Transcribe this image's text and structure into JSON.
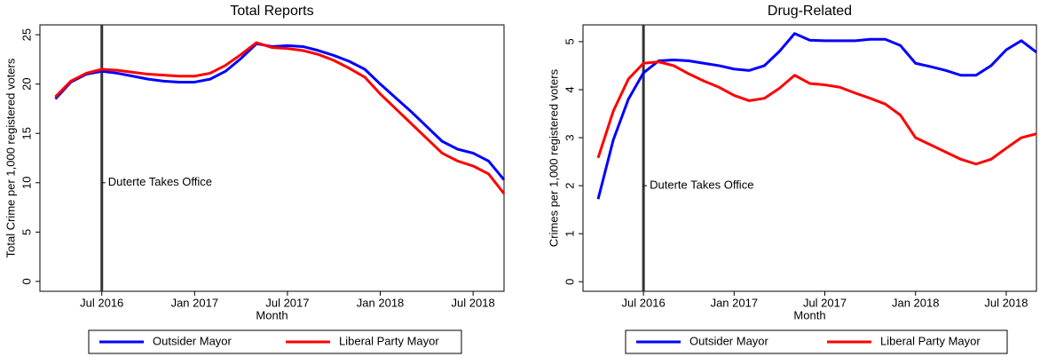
{
  "chart_data": [
    {
      "type": "line",
      "title": "Total Reports",
      "xlabel": "Month",
      "ylabel": "Total Crime per 1,000 registered voters",
      "x": [
        "2016-04",
        "2016-05",
        "2016-06",
        "2016-07",
        "2016-08",
        "2016-09",
        "2016-10",
        "2016-11",
        "2016-12",
        "2017-01",
        "2017-02",
        "2017-03",
        "2017-04",
        "2017-05",
        "2017-06",
        "2017-07",
        "2017-08",
        "2017-09",
        "2017-10",
        "2017-11",
        "2017-12",
        "2018-01",
        "2018-02",
        "2018-03",
        "2018-04",
        "2018-05",
        "2018-06",
        "2018-07",
        "2018-08",
        "2018-09"
      ],
      "series": [
        {
          "name": "Outsider Mayor",
          "color": "#0000ff",
          "values": [
            18.5,
            20.2,
            21.0,
            21.3,
            21.1,
            20.8,
            20.5,
            20.3,
            20.2,
            20.2,
            20.5,
            21.3,
            22.6,
            24.1,
            23.8,
            23.9,
            23.8,
            23.4,
            22.9,
            22.3,
            21.5,
            20.0,
            18.6,
            17.2,
            15.7,
            14.2,
            13.4,
            13.0,
            12.2,
            10.3
          ]
        },
        {
          "name": "Liberal Party Mayor",
          "color": "#ff0000",
          "values": [
            18.7,
            20.3,
            21.1,
            21.5,
            21.4,
            21.2,
            21.0,
            20.9,
            20.8,
            20.8,
            21.1,
            21.9,
            23.0,
            24.2,
            23.7,
            23.6,
            23.4,
            23.0,
            22.4,
            21.6,
            20.7,
            19.0,
            17.5,
            16.0,
            14.5,
            13.0,
            12.2,
            11.7,
            10.9,
            8.9
          ]
        }
      ],
      "xlim": [
        "2016-03",
        "2018-09"
      ],
      "ylim": [
        -1,
        26
      ],
      "xticks": [
        {
          "value": "2016-07",
          "label": "Jul 2016"
        },
        {
          "value": "2017-01",
          "label": "Jan 2017"
        },
        {
          "value": "2017-07",
          "label": "Jul 2017"
        },
        {
          "value": "2018-01",
          "label": "Jan 2018"
        },
        {
          "value": "2018-07",
          "label": "Jul 2018"
        }
      ],
      "yticks": [
        0,
        5,
        10,
        15,
        20,
        25
      ],
      "annotation": {
        "text": "Duterte Takes Office",
        "x": "2016-07",
        "y": 10
      },
      "legend": "bottom"
    },
    {
      "type": "line",
      "title": "Drug-Related",
      "xlabel": "Month",
      "ylabel": "Crimes per 1,000 registered voters",
      "x": [
        "2016-04",
        "2016-05",
        "2016-06",
        "2016-07",
        "2016-08",
        "2016-09",
        "2016-10",
        "2016-11",
        "2016-12",
        "2017-01",
        "2017-02",
        "2017-03",
        "2017-04",
        "2017-05",
        "2017-06",
        "2017-07",
        "2017-08",
        "2017-09",
        "2017-10",
        "2017-11",
        "2017-12",
        "2018-01",
        "2018-02",
        "2018-03",
        "2018-04",
        "2018-05",
        "2018-06",
        "2018-07",
        "2018-08",
        "2018-09"
      ],
      "series": [
        {
          "name": "Outsider Mayor",
          "color": "#0000ff",
          "values": [
            1.72,
            2.95,
            3.8,
            4.35,
            4.6,
            4.62,
            4.6,
            4.55,
            4.5,
            4.43,
            4.4,
            4.5,
            4.8,
            5.17,
            5.03,
            5.02,
            5.02,
            5.02,
            5.05,
            5.05,
            4.92,
            4.55,
            4.48,
            4.4,
            4.3,
            4.3,
            4.5,
            4.83,
            5.02,
            4.78
          ]
        },
        {
          "name": "Liberal Party Mayor",
          "color": "#ff0000",
          "values": [
            2.58,
            3.55,
            4.22,
            4.55,
            4.58,
            4.5,
            4.33,
            4.18,
            4.05,
            3.88,
            3.77,
            3.82,
            4.03,
            4.3,
            4.13,
            4.1,
            4.05,
            3.93,
            3.82,
            3.7,
            3.47,
            3.0,
            2.85,
            2.7,
            2.55,
            2.45,
            2.55,
            2.78,
            3.0,
            3.08
          ]
        }
      ],
      "xlim": [
        "2016-03",
        "2018-09"
      ],
      "ylim": [
        -0.2,
        5.35
      ],
      "xticks": [
        {
          "value": "2016-07",
          "label": "Jul 2016"
        },
        {
          "value": "2017-01",
          "label": "Jan 2017"
        },
        {
          "value": "2017-07",
          "label": "Jul 2017"
        },
        {
          "value": "2018-01",
          "label": "Jan 2018"
        },
        {
          "value": "2018-07",
          "label": "Jul 2018"
        }
      ],
      "yticks": [
        0,
        1,
        2,
        3,
        4,
        5
      ],
      "annotation": {
        "text": "Duterte Takes Office",
        "x": "2016-07",
        "y": 2
      },
      "legend": "bottom"
    }
  ]
}
